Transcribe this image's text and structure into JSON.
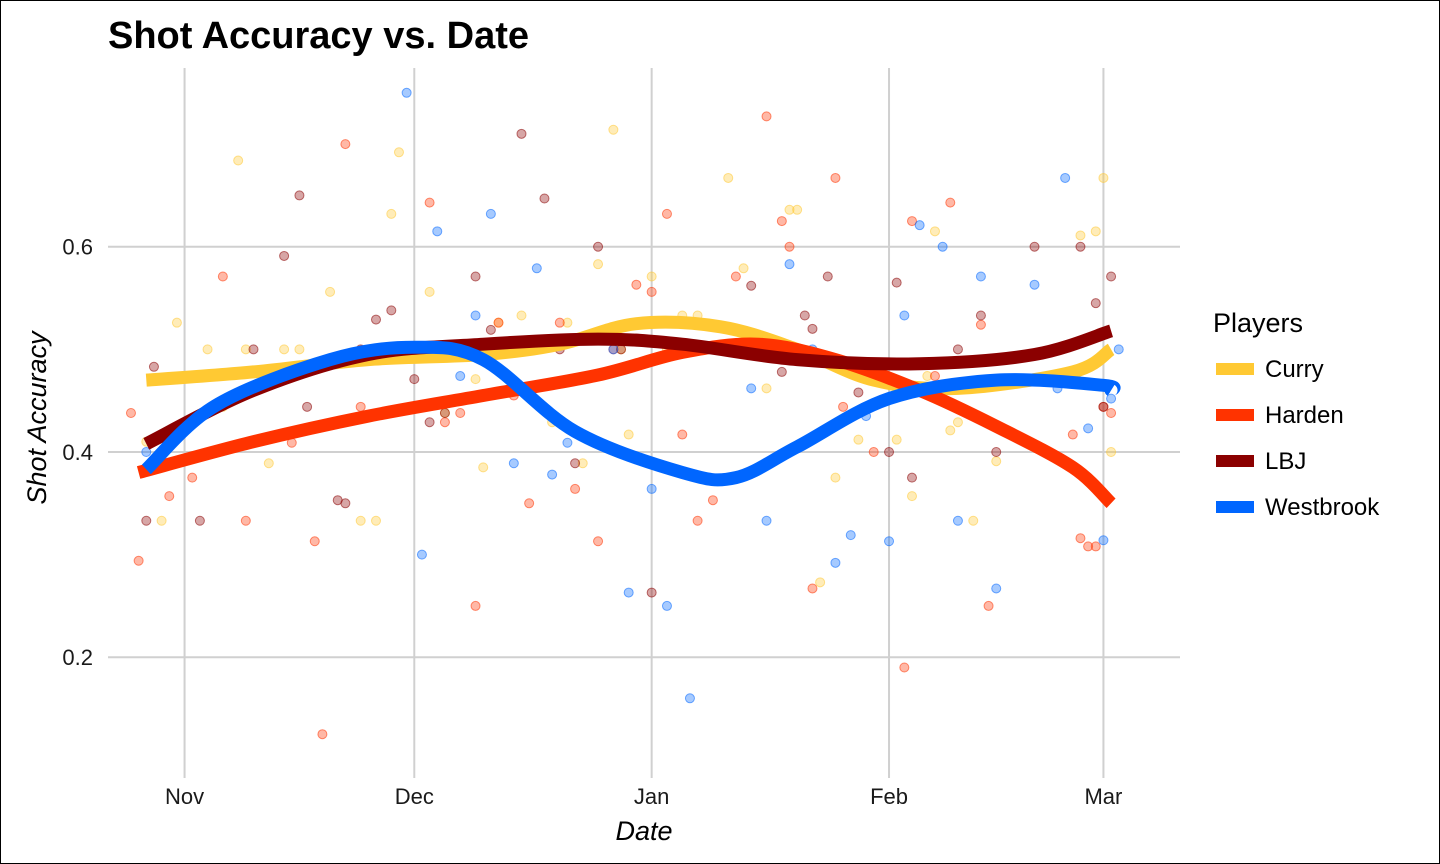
{
  "chart_data": {
    "type": "scatter",
    "title": "Shot Accuracy vs. Date",
    "xlabel": "Date",
    "ylabel": "Shot Accuracy",
    "x_ticks": [
      {
        "label": "Nov",
        "date": "2016-11-01"
      },
      {
        "label": "Dec",
        "date": "2016-12-01"
      },
      {
        "label": "Jan",
        "date": "2017-01-01"
      },
      {
        "label": "Feb",
        "date": "2017-02-01"
      },
      {
        "label": "Mar",
        "date": "2017-03-01"
      }
    ],
    "y_ticks": [
      0.2,
      0.4,
      0.6
    ],
    "xlim": [
      "2016-10-22",
      "2017-03-11"
    ],
    "ylim": [
      0.095,
      0.78
    ],
    "grid": true,
    "legend": {
      "title": "Players",
      "position": "right"
    },
    "series": [
      {
        "name": "Curry",
        "color": "#FFC933",
        "trend": [
          [
            "2016-10-27",
            0.47
          ],
          [
            "2016-11-10",
            0.478
          ],
          [
            "2016-11-25",
            0.49
          ],
          [
            "2016-12-10",
            0.495
          ],
          [
            "2016-12-20",
            0.505
          ],
          [
            "2016-12-30",
            0.525
          ],
          [
            "2017-01-10",
            0.522
          ],
          [
            "2017-01-20",
            0.5
          ],
          [
            "2017-01-30",
            0.47
          ],
          [
            "2017-02-10",
            0.462
          ],
          [
            "2017-02-25",
            0.478
          ],
          [
            "2017-03-02",
            0.5
          ]
        ],
        "points": [
          [
            "2016-10-27",
            0.41
          ],
          [
            "2016-10-29",
            0.333
          ],
          [
            "2016-10-31",
            0.526
          ],
          [
            "2016-11-04",
            0.5
          ],
          [
            "2016-11-06",
            0.444
          ],
          [
            "2016-11-08",
            0.684
          ],
          [
            "2016-11-09",
            0.5
          ],
          [
            "2016-11-12",
            0.389
          ],
          [
            "2016-11-14",
            0.5
          ],
          [
            "2016-11-16",
            0.5
          ],
          [
            "2016-11-20",
            0.556
          ],
          [
            "2016-11-24",
            0.333
          ],
          [
            "2016-11-26",
            0.333
          ],
          [
            "2016-11-27",
            0.5
          ],
          [
            "2016-11-28",
            0.632
          ],
          [
            "2016-11-29",
            0.692
          ],
          [
            "2016-12-03",
            0.556
          ],
          [
            "2016-12-05",
            0.438
          ],
          [
            "2016-12-09",
            0.471
          ],
          [
            "2016-12-10",
            0.385
          ],
          [
            "2016-12-12",
            0.526
          ],
          [
            "2016-12-15",
            0.533
          ],
          [
            "2016-12-17",
            0.5
          ],
          [
            "2016-12-19",
            0.429
          ],
          [
            "2016-12-21",
            0.526
          ],
          [
            "2016-12-23",
            0.389
          ],
          [
            "2016-12-25",
            0.583
          ],
          [
            "2016-12-27",
            0.714
          ],
          [
            "2016-12-28",
            0.5
          ],
          [
            "2016-12-29",
            0.417
          ],
          [
            "2017-01-01",
            0.571
          ],
          [
            "2017-01-03",
            0.5
          ],
          [
            "2017-01-05",
            0.533
          ],
          [
            "2017-01-07",
            0.533
          ],
          [
            "2017-01-11",
            0.667
          ],
          [
            "2017-01-13",
            0.579
          ],
          [
            "2017-01-16",
            0.462
          ],
          [
            "2017-01-19",
            0.636
          ],
          [
            "2017-01-20",
            0.636
          ],
          [
            "2017-01-23",
            0.273
          ],
          [
            "2017-01-25",
            0.375
          ],
          [
            "2017-01-28",
            0.412
          ],
          [
            "2017-02-02",
            0.412
          ],
          [
            "2017-02-04",
            0.357
          ],
          [
            "2017-02-06",
            0.474
          ],
          [
            "2017-02-07",
            0.615
          ],
          [
            "2017-02-09",
            0.421
          ],
          [
            "2017-02-10",
            0.429
          ],
          [
            "2017-02-12",
            0.333
          ],
          [
            "2017-02-15",
            0.391
          ],
          [
            "2017-02-26",
            0.611
          ],
          [
            "2017-02-28",
            0.615
          ],
          [
            "2017-03-01",
            0.667
          ],
          [
            "2017-03-02",
            0.4
          ]
        ]
      },
      {
        "name": "Harden",
        "color": "#FF3300",
        "trend": [
          [
            "2016-10-26",
            0.38
          ],
          [
            "2016-11-10",
            0.41
          ],
          [
            "2016-11-25",
            0.435
          ],
          [
            "2016-12-10",
            0.455
          ],
          [
            "2016-12-25",
            0.475
          ],
          [
            "2017-01-05",
            0.497
          ],
          [
            "2017-01-15",
            0.505
          ],
          [
            "2017-01-25",
            0.49
          ],
          [
            "2017-02-05",
            0.46
          ],
          [
            "2017-02-15",
            0.425
          ],
          [
            "2017-02-25",
            0.385
          ],
          [
            "2017-03-02",
            0.35
          ]
        ],
        "points": [
          [
            "2016-10-25",
            0.438
          ],
          [
            "2016-10-26",
            0.294
          ],
          [
            "2016-10-30",
            0.357
          ],
          [
            "2016-11-02",
            0.375
          ],
          [
            "2016-11-04",
            0.438
          ],
          [
            "2016-11-06",
            0.571
          ],
          [
            "2016-11-09",
            0.333
          ],
          [
            "2016-11-15",
            0.409
          ],
          [
            "2016-11-18",
            0.313
          ],
          [
            "2016-11-19",
            0.125
          ],
          [
            "2016-11-22",
            0.7
          ],
          [
            "2016-11-24",
            0.444
          ],
          [
            "2016-12-03",
            0.643
          ],
          [
            "2016-12-05",
            0.429
          ],
          [
            "2016-12-07",
            0.438
          ],
          [
            "2016-12-09",
            0.25
          ],
          [
            "2016-12-12",
            0.526
          ],
          [
            "2016-12-14",
            0.455
          ],
          [
            "2016-12-16",
            0.35
          ],
          [
            "2016-12-20",
            0.526
          ],
          [
            "2016-12-22",
            0.364
          ],
          [
            "2016-12-25",
            0.313
          ],
          [
            "2016-12-27",
            0.5
          ],
          [
            "2016-12-30",
            0.563
          ],
          [
            "2017-01-01",
            0.556
          ],
          [
            "2017-01-03",
            0.632
          ],
          [
            "2017-01-05",
            0.417
          ],
          [
            "2017-01-07",
            0.333
          ],
          [
            "2017-01-09",
            0.353
          ],
          [
            "2017-01-12",
            0.571
          ],
          [
            "2017-01-16",
            0.727
          ],
          [
            "2017-01-18",
            0.625
          ],
          [
            "2017-01-19",
            0.6
          ],
          [
            "2017-01-22",
            0.267
          ],
          [
            "2017-01-25",
            0.667
          ],
          [
            "2017-01-26",
            0.444
          ],
          [
            "2017-01-30",
            0.4
          ],
          [
            "2017-02-03",
            0.19
          ],
          [
            "2017-02-04",
            0.625
          ],
          [
            "2017-02-07",
            0.474
          ],
          [
            "2017-02-09",
            0.643
          ],
          [
            "2017-02-10",
            0.444
          ],
          [
            "2017-02-13",
            0.524
          ],
          [
            "2017-02-14",
            0.25
          ],
          [
            "2017-02-25",
            0.417
          ],
          [
            "2017-02-26",
            0.316
          ],
          [
            "2017-02-27",
            0.308
          ],
          [
            "2017-02-28",
            0.308
          ],
          [
            "2017-03-01",
            0.444
          ],
          [
            "2017-03-02",
            0.438
          ]
        ]
      },
      {
        "name": "LBJ",
        "color": "#8B0000",
        "trend": [
          [
            "2016-10-27",
            0.408
          ],
          [
            "2016-11-10",
            0.46
          ],
          [
            "2016-11-25",
            0.495
          ],
          [
            "2016-12-10",
            0.505
          ],
          [
            "2016-12-25",
            0.51
          ],
          [
            "2017-01-05",
            0.505
          ],
          [
            "2017-01-20",
            0.49
          ],
          [
            "2017-02-05",
            0.486
          ],
          [
            "2017-02-20",
            0.495
          ],
          [
            "2017-03-02",
            0.518
          ]
        ],
        "points": [
          [
            "2016-10-27",
            0.333
          ],
          [
            "2016-10-28",
            0.483
          ],
          [
            "2016-11-03",
            0.333
          ],
          [
            "2016-11-10",
            0.5
          ],
          [
            "2016-11-14",
            0.591
          ],
          [
            "2016-11-16",
            0.65
          ],
          [
            "2016-11-17",
            0.444
          ],
          [
            "2016-11-21",
            0.353
          ],
          [
            "2016-11-22",
            0.35
          ],
          [
            "2016-11-24",
            0.5
          ],
          [
            "2016-11-26",
            0.529
          ],
          [
            "2016-11-28",
            0.538
          ],
          [
            "2016-12-01",
            0.471
          ],
          [
            "2016-12-03",
            0.429
          ],
          [
            "2016-12-05",
            0.438
          ],
          [
            "2016-12-09",
            0.571
          ],
          [
            "2016-12-11",
            0.519
          ],
          [
            "2016-12-15",
            0.71
          ],
          [
            "2016-12-18",
            0.647
          ],
          [
            "2016-12-20",
            0.5
          ],
          [
            "2016-12-22",
            0.389
          ],
          [
            "2016-12-25",
            0.6
          ],
          [
            "2016-12-28",
            0.5
          ],
          [
            "2017-01-01",
            0.263
          ],
          [
            "2017-01-14",
            0.562
          ],
          [
            "2017-01-18",
            0.478
          ],
          [
            "2017-01-21",
            0.533
          ],
          [
            "2017-01-22",
            0.52
          ],
          [
            "2017-01-24",
            0.571
          ],
          [
            "2017-01-28",
            0.458
          ],
          [
            "2017-02-01",
            0.4
          ],
          [
            "2017-02-02",
            0.565
          ],
          [
            "2017-02-04",
            0.375
          ],
          [
            "2017-02-10",
            0.5
          ],
          [
            "2017-02-13",
            0.533
          ],
          [
            "2017-02-15",
            0.4
          ],
          [
            "2017-02-20",
            0.6
          ],
          [
            "2017-02-26",
            0.6
          ],
          [
            "2017-02-28",
            0.545
          ],
          [
            "2017-03-01",
            0.444
          ],
          [
            "2017-03-02",
            0.571
          ]
        ]
      },
      {
        "name": "Westbrook",
        "color": "#0066FF",
        "trend": [
          [
            "2016-10-27",
            0.383
          ],
          [
            "2016-11-05",
            0.445
          ],
          [
            "2016-11-20",
            0.49
          ],
          [
            "2016-12-01",
            0.502
          ],
          [
            "2016-12-10",
            0.49
          ],
          [
            "2016-12-22",
            0.42
          ],
          [
            "2017-01-05",
            0.38
          ],
          [
            "2017-01-12",
            0.375
          ],
          [
            "2017-01-20",
            0.405
          ],
          [
            "2017-02-01",
            0.452
          ],
          [
            "2017-02-15",
            0.47
          ],
          [
            "2017-03-01",
            0.465
          ],
          [
            "2017-03-02",
            0.46
          ]
        ],
        "points": [
          [
            "2016-10-27",
            0.4
          ],
          [
            "2016-11-30",
            0.75
          ],
          [
            "2016-12-02",
            0.3
          ],
          [
            "2016-12-04",
            0.615
          ],
          [
            "2016-12-07",
            0.474
          ],
          [
            "2016-12-09",
            0.533
          ],
          [
            "2016-12-11",
            0.632
          ],
          [
            "2016-12-14",
            0.389
          ],
          [
            "2016-12-17",
            0.579
          ],
          [
            "2016-12-19",
            0.378
          ],
          [
            "2016-12-21",
            0.409
          ],
          [
            "2016-12-23",
            0.417
          ],
          [
            "2016-12-27",
            0.5
          ],
          [
            "2016-12-29",
            0.263
          ],
          [
            "2017-01-01",
            0.364
          ],
          [
            "2017-01-03",
            0.25
          ],
          [
            "2017-01-06",
            0.16
          ],
          [
            "2017-01-14",
            0.462
          ],
          [
            "2017-01-16",
            0.333
          ],
          [
            "2017-01-19",
            0.583
          ],
          [
            "2017-01-22",
            0.5
          ],
          [
            "2017-01-25",
            0.292
          ],
          [
            "2017-01-27",
            0.319
          ],
          [
            "2017-01-29",
            0.435
          ],
          [
            "2017-02-01",
            0.313
          ],
          [
            "2017-02-03",
            0.533
          ],
          [
            "2017-02-05",
            0.621
          ],
          [
            "2017-02-08",
            0.6
          ],
          [
            "2017-02-10",
            0.333
          ],
          [
            "2017-02-13",
            0.571
          ],
          [
            "2017-02-15",
            0.267
          ],
          [
            "2017-02-20",
            0.563
          ],
          [
            "2017-02-23",
            0.462
          ],
          [
            "2017-02-24",
            0.667
          ],
          [
            "2017-02-27",
            0.423
          ],
          [
            "2017-03-01",
            0.314
          ],
          [
            "2017-03-02",
            0.452
          ],
          [
            "2017-03-03",
            0.5
          ]
        ]
      }
    ]
  }
}
